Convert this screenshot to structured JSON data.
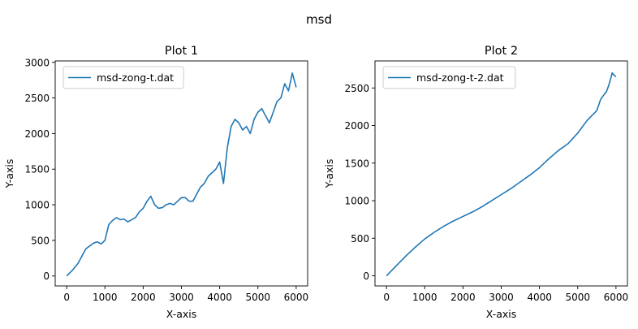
{
  "figure": {
    "title": "msd"
  },
  "chart_data": [
    {
      "type": "line",
      "title": "Plot 1",
      "xlabel": "X-axis",
      "ylabel": "Y-axis",
      "xlim": [
        -300,
        6300
      ],
      "ylim": [
        -140,
        3020
      ],
      "xticks": [
        0,
        1000,
        2000,
        3000,
        4000,
        5000,
        6000
      ],
      "yticks": [
        0,
        500,
        1000,
        1500,
        2000,
        2500,
        3000
      ],
      "grid": false,
      "legend": "top-left",
      "series": [
        {
          "name": "msd-zong-t.dat",
          "color": "#1f77b4",
          "x": [
            0,
            150,
            300,
            400,
            500,
            600,
            700,
            800,
            900,
            1000,
            1100,
            1200,
            1300,
            1400,
            1500,
            1600,
            1700,
            1800,
            1900,
            2000,
            2100,
            2200,
            2300,
            2400,
            2500,
            2600,
            2700,
            2800,
            2900,
            3000,
            3100,
            3200,
            3300,
            3400,
            3500,
            3600,
            3700,
            3800,
            3900,
            4000,
            4100,
            4200,
            4300,
            4400,
            4500,
            4600,
            4700,
            4800,
            4900,
            5000,
            5100,
            5200,
            5300,
            5400,
            5500,
            5600,
            5700,
            5800,
            5900,
            6000
          ],
          "y": [
            0,
            80,
            180,
            280,
            380,
            420,
            460,
            480,
            450,
            500,
            720,
            780,
            820,
            790,
            800,
            760,
            790,
            820,
            900,
            950,
            1050,
            1120,
            1000,
            950,
            960,
            1000,
            1020,
            1000,
            1050,
            1100,
            1100,
            1050,
            1050,
            1150,
            1250,
            1300,
            1400,
            1450,
            1500,
            1600,
            1300,
            1800,
            2100,
            2200,
            2150,
            2050,
            2100,
            2000,
            2200,
            2300,
            2350,
            2250,
            2150,
            2300,
            2450,
            2500,
            2700,
            2600,
            2850,
            2650
          ]
        }
      ]
    },
    {
      "type": "line",
      "title": "Plot 2",
      "xlabel": "X-axis",
      "ylabel": "Y-axis",
      "xlim": [
        -300,
        6300
      ],
      "ylim": [
        -135,
        2860
      ],
      "xticks": [
        0,
        1000,
        2000,
        3000,
        4000,
        5000,
        6000
      ],
      "yticks": [
        0,
        500,
        1000,
        1500,
        2000,
        2500
      ],
      "grid": false,
      "legend": "top-left",
      "series": [
        {
          "name": "msd-zong-t-2.dat",
          "color": "#1f77b4",
          "x": [
            0,
            250,
            500,
            750,
            1000,
            1250,
            1500,
            1750,
            2000,
            2250,
            2500,
            2750,
            3000,
            3250,
            3500,
            3750,
            4000,
            4250,
            4500,
            4750,
            5000,
            5250,
            5500,
            5600,
            5700,
            5750,
            5800,
            5850,
            5900,
            5950,
            6000
          ],
          "y": [
            0,
            130,
            260,
            380,
            490,
            580,
            660,
            730,
            790,
            850,
            920,
            1000,
            1080,
            1160,
            1250,
            1340,
            1440,
            1560,
            1670,
            1760,
            1900,
            2070,
            2200,
            2350,
            2420,
            2450,
            2520,
            2600,
            2700,
            2670,
            2650
          ]
        }
      ]
    }
  ]
}
